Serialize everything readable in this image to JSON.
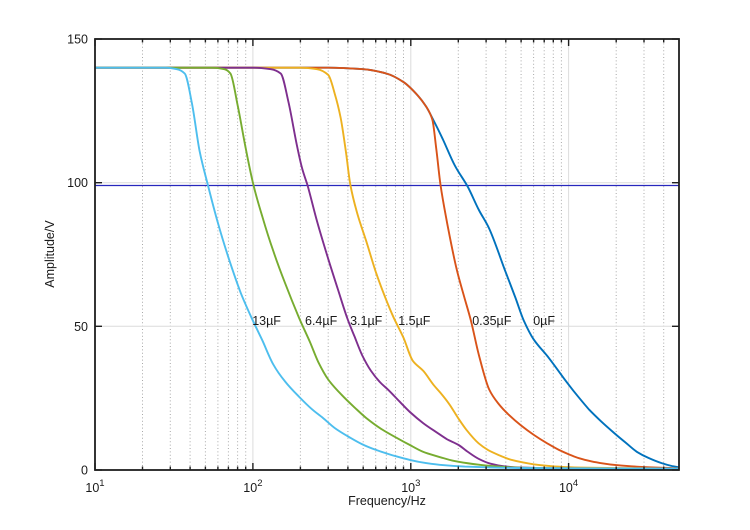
{
  "figure": {
    "background": "#ffffff",
    "axis_color": "#1f1f1f",
    "major_grid_color": "#dcdcdc",
    "minor_grid_color": "#a9a9a9",
    "text_color": "#1a1a1a"
  },
  "chart_data": {
    "type": "line",
    "title": "",
    "xlabel": "Frequency/Hz",
    "ylabel": "Amplitude/V",
    "xscale": "log",
    "xlim": [
      10,
      50000
    ],
    "ylim": [
      0,
      150
    ],
    "xticks": [
      10,
      100,
      1000,
      10000
    ],
    "xtick_labels": [
      {
        "base": "10",
        "exp": "1"
      },
      {
        "base": "10",
        "exp": "2"
      },
      {
        "base": "10",
        "exp": "3"
      },
      {
        "base": "10",
        "exp": "4"
      }
    ],
    "yticks": [
      0,
      50,
      100,
      150
    ],
    "ytick_labels": [
      "0",
      "50",
      "100",
      "150"
    ],
    "grid": "on",
    "minor_grid": "on",
    "legend": "none",
    "reference_line": {
      "amplitude": 99,
      "color": "#2727bd"
    },
    "series": [
      {
        "label": "0µF",
        "color": "#0072BD",
        "points": [
          [
            10,
            140
          ],
          [
            300,
            140
          ],
          [
            500,
            139.5
          ],
          [
            700,
            138
          ],
          [
            900,
            135
          ],
          [
            1100,
            130.5
          ],
          [
            1250,
            126.5
          ],
          [
            1400,
            121.5
          ],
          [
            1600,
            115
          ],
          [
            1900,
            106
          ],
          [
            2300,
            98.5
          ],
          [
            2700,
            90.5
          ],
          [
            3140,
            84
          ],
          [
            3980,
            69
          ],
          [
            4600,
            60
          ],
          [
            5200,
            52
          ],
          [
            6000,
            45.5
          ],
          [
            7490,
            39
          ],
          [
            9900,
            30
          ],
          [
            11500,
            25.5
          ],
          [
            13500,
            21
          ],
          [
            16000,
            17
          ],
          [
            19300,
            13
          ],
          [
            23000,
            9.5
          ],
          [
            27100,
            6.3
          ],
          [
            32000,
            4.2
          ],
          [
            38800,
            2.4
          ],
          [
            45000,
            1.4
          ],
          [
            50000,
            0.9
          ]
        ]
      },
      {
        "label": "0.35µF",
        "color": "#D95319",
        "points": [
          [
            10,
            140
          ],
          [
            300,
            140
          ],
          [
            500,
            139.5
          ],
          [
            700,
            138
          ],
          [
            900,
            135
          ],
          [
            1100,
            130.5
          ],
          [
            1250,
            126.5
          ],
          [
            1370,
            122
          ],
          [
            1450,
            112
          ],
          [
            1545,
            99
          ],
          [
            1700,
            86
          ],
          [
            1950,
            70
          ],
          [
            2200,
            59.5
          ],
          [
            2405,
            52
          ],
          [
            2700,
            40
          ],
          [
            3140,
            28
          ],
          [
            3600,
            23
          ],
          [
            4180,
            19.2
          ],
          [
            5000,
            15.5
          ],
          [
            6020,
            12.2
          ],
          [
            7200,
            9.5
          ],
          [
            8680,
            7
          ],
          [
            10000,
            5.5
          ],
          [
            11630,
            4.1
          ],
          [
            14000,
            3
          ],
          [
            16500,
            2.3
          ],
          [
            20000,
            1.7
          ],
          [
            28000,
            1.1
          ],
          [
            38000,
            0.8
          ],
          [
            50000,
            0.6
          ]
        ]
      },
      {
        "label": "1.5µF",
        "color": "#EDB120",
        "points": [
          [
            10,
            140
          ],
          [
            200,
            140
          ],
          [
            255,
            139.5
          ],
          [
            300,
            137.5
          ],
          [
            330,
            131
          ],
          [
            360,
            122.5
          ],
          [
            390,
            110
          ],
          [
            415,
            99
          ],
          [
            460,
            89
          ],
          [
            520,
            80
          ],
          [
            600,
            69
          ],
          [
            690,
            60
          ],
          [
            780,
            53
          ],
          [
            900,
            46
          ],
          [
            1030,
            38
          ],
          [
            1200,
            34.5
          ],
          [
            1400,
            29.5
          ],
          [
            1535,
            27
          ],
          [
            1750,
            23
          ],
          [
            2000,
            18
          ],
          [
            2250,
            14
          ],
          [
            2690,
            9.3
          ],
          [
            3100,
            6.9
          ],
          [
            3610,
            5.2
          ],
          [
            4300,
            3.6
          ],
          [
            5050,
            2.7
          ],
          [
            6000,
            2
          ],
          [
            7200,
            1.5
          ],
          [
            9000,
            1.1
          ],
          [
            12000,
            0.85
          ],
          [
            20000,
            0.65
          ],
          [
            50000,
            0.5
          ]
        ]
      },
      {
        "label": "3.1µF",
        "color": "#7E2F8E",
        "points": [
          [
            10,
            140
          ],
          [
            100,
            140
          ],
          [
            130,
            139.5
          ],
          [
            150,
            138
          ],
          [
            168,
            128
          ],
          [
            190,
            113
          ],
          [
            205,
            105
          ],
          [
            222,
            99
          ],
          [
            255,
            86.5
          ],
          [
            300,
            73.5
          ],
          [
            345,
            63
          ],
          [
            395,
            53
          ],
          [
            440,
            46.5
          ],
          [
            492,
            40
          ],
          [
            560,
            34.5
          ],
          [
            640,
            30.5
          ],
          [
            720,
            27.9
          ],
          [
            850,
            23.8
          ],
          [
            987,
            20.2
          ],
          [
            1200,
            16.3
          ],
          [
            1440,
            13.3
          ],
          [
            1700,
            10.7
          ],
          [
            2010,
            8.7
          ],
          [
            2300,
            6.3
          ],
          [
            2690,
            3.9
          ],
          [
            3200,
            2.2
          ],
          [
            3900,
            1.3
          ],
          [
            5000,
            0.85
          ],
          [
            8000,
            0.6
          ],
          [
            50000,
            0.45
          ]
        ]
      },
      {
        "label": "6.4µF",
        "color": "#77AC30",
        "points": [
          [
            10,
            140
          ],
          [
            55,
            140
          ],
          [
            66,
            139.5
          ],
          [
            72,
            138
          ],
          [
            80,
            127
          ],
          [
            90,
            112
          ],
          [
            101,
            99
          ],
          [
            115,
            88
          ],
          [
            135,
            76
          ],
          [
            160,
            65
          ],
          [
            196,
            53
          ],
          [
            230,
            44.5
          ],
          [
            260,
            37.5
          ],
          [
            300,
            31.5
          ],
          [
            364,
            26.2
          ],
          [
            440,
            21.8
          ],
          [
            522,
            18.1
          ],
          [
            650,
            14.3
          ],
          [
            813,
            11.2
          ],
          [
            987,
            8.7
          ],
          [
            1200,
            6.3
          ],
          [
            1400,
            5.1
          ],
          [
            1590,
            4.2
          ],
          [
            1900,
            3.1
          ],
          [
            2480,
            2.1
          ],
          [
            3200,
            1.4
          ],
          [
            4500,
            0.9
          ],
          [
            8000,
            0.6
          ],
          [
            50000,
            0.45
          ]
        ]
      },
      {
        "label": "13µF",
        "color": "#4DBEEE",
        "points": [
          [
            10,
            140
          ],
          [
            28,
            140
          ],
          [
            33,
            139.5
          ],
          [
            37,
            138
          ],
          [
            41,
            128
          ],
          [
            46,
            111
          ],
          [
            52,
            99
          ],
          [
            60,
            86
          ],
          [
            70,
            74
          ],
          [
            84,
            61.5
          ],
          [
            98,
            53
          ],
          [
            115,
            45
          ],
          [
            135,
            36.6
          ],
          [
            160,
            30.8
          ],
          [
            196,
            25.5
          ],
          [
            235,
            21.3
          ],
          [
            278,
            18.1
          ],
          [
            330,
            14.6
          ],
          [
            406,
            11.5
          ],
          [
            490,
            9
          ],
          [
            602,
            7
          ],
          [
            760,
            5.2
          ],
          [
            987,
            3.5
          ],
          [
            1250,
            2.4
          ],
          [
            1590,
            1.7
          ],
          [
            2200,
            1.2
          ],
          [
            3200,
            0.9
          ],
          [
            5000,
            0.7
          ],
          [
            10000,
            0.6
          ],
          [
            50000,
            0.5
          ]
        ]
      }
    ],
    "annotations": [
      {
        "text": "13µF",
        "f": 99,
        "amplitude": 52
      },
      {
        "text": "6.4µF",
        "f": 214,
        "amplitude": 52
      },
      {
        "text": "3.1µF",
        "f": 413,
        "amplitude": 52
      },
      {
        "text": "1.5µF",
        "f": 832,
        "amplitude": 52
      },
      {
        "text": "0.35µF",
        "f": 2450,
        "amplitude": 52
      },
      {
        "text": "0µF",
        "f": 5960,
        "amplitude": 52
      }
    ]
  }
}
